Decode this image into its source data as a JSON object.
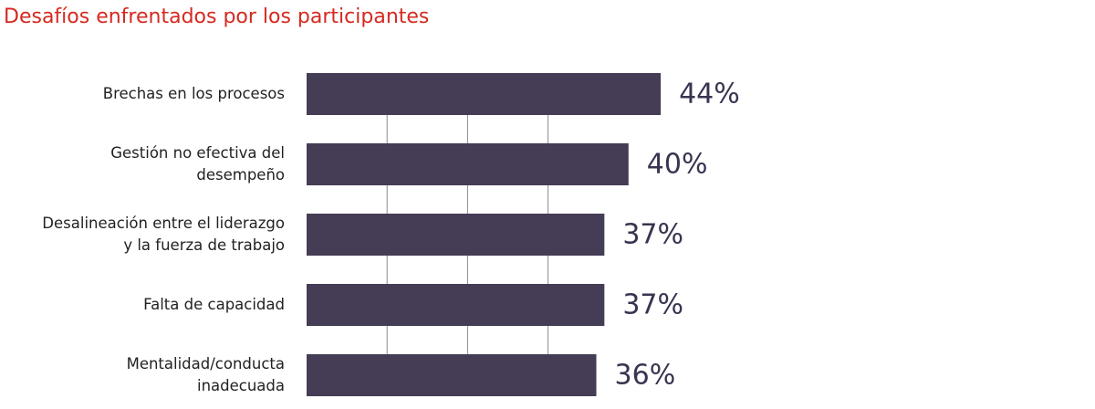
{
  "chart_data": {
    "type": "bar",
    "orientation": "horizontal",
    "title": "Desafíos enfrentados por los participantes",
    "categories": [
      "Brechas en los procesos",
      "Gestión no efectiva del\ndesempeño",
      "Desalineación entre el liderazgo\ny la fuerza de trabajo",
      "Falta de capacidad",
      "Mentalidad/conducta\ninadecuada"
    ],
    "values": [
      44,
      40,
      37,
      37,
      36
    ],
    "value_labels": [
      "44%",
      "40%",
      "37%",
      "37%",
      "36%"
    ],
    "color": "#453c55",
    "xlim": [
      0,
      50
    ],
    "xticks": [
      10,
      20,
      30
    ],
    "grid": true,
    "tick_labels": false
  }
}
